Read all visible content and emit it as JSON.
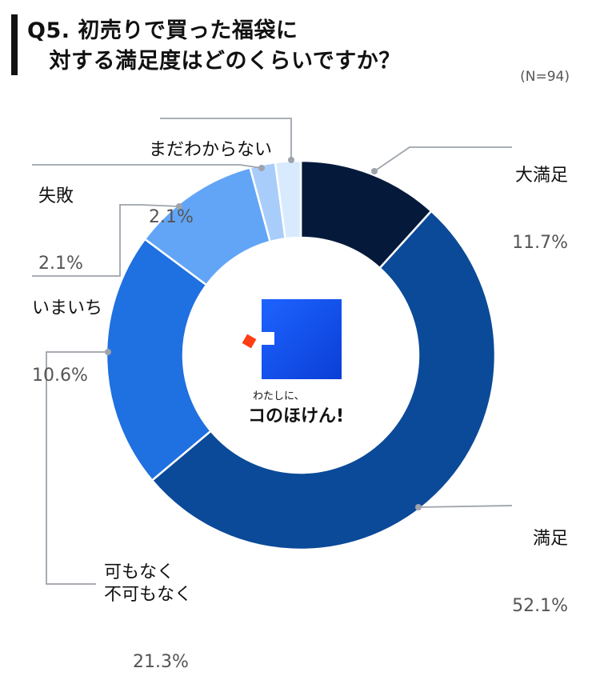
{
  "title": "Q5. 初売りで買った福袋に\n　対する満足度はどのくらいですか？",
  "sample_size": "(N=94)",
  "brand": {
    "tagline": "わたしに、",
    "name": "コのほけん!"
  },
  "chart_data": {
    "type": "pie",
    "title": "Q5. 初売りで買った福袋に対する満足度はどのくらいですか？",
    "donut": true,
    "start_angle_deg": 0,
    "direction": "clockwise",
    "slices": [
      {
        "label": "大満足",
        "value": 11.7,
        "display": "11.7%",
        "color": "#051a3b"
      },
      {
        "label": "満足",
        "value": 52.1,
        "display": "52.1%",
        "color": "#0b4a98"
      },
      {
        "label": "可もなく\n不可もなく",
        "value": 21.3,
        "display": "21.3%",
        "color": "#1f70e0"
      },
      {
        "label": "いまいち",
        "value": 10.6,
        "display": "10.6%",
        "color": "#62a5f6"
      },
      {
        "label": "失敗",
        "value": 2.1,
        "display": "2.1%",
        "color": "#a9cdfa"
      },
      {
        "label": "まだわからない",
        "value": 2.1,
        "display": "2.1%",
        "color": "#d8eafd"
      }
    ],
    "leader_color": "#9ea3ab"
  }
}
